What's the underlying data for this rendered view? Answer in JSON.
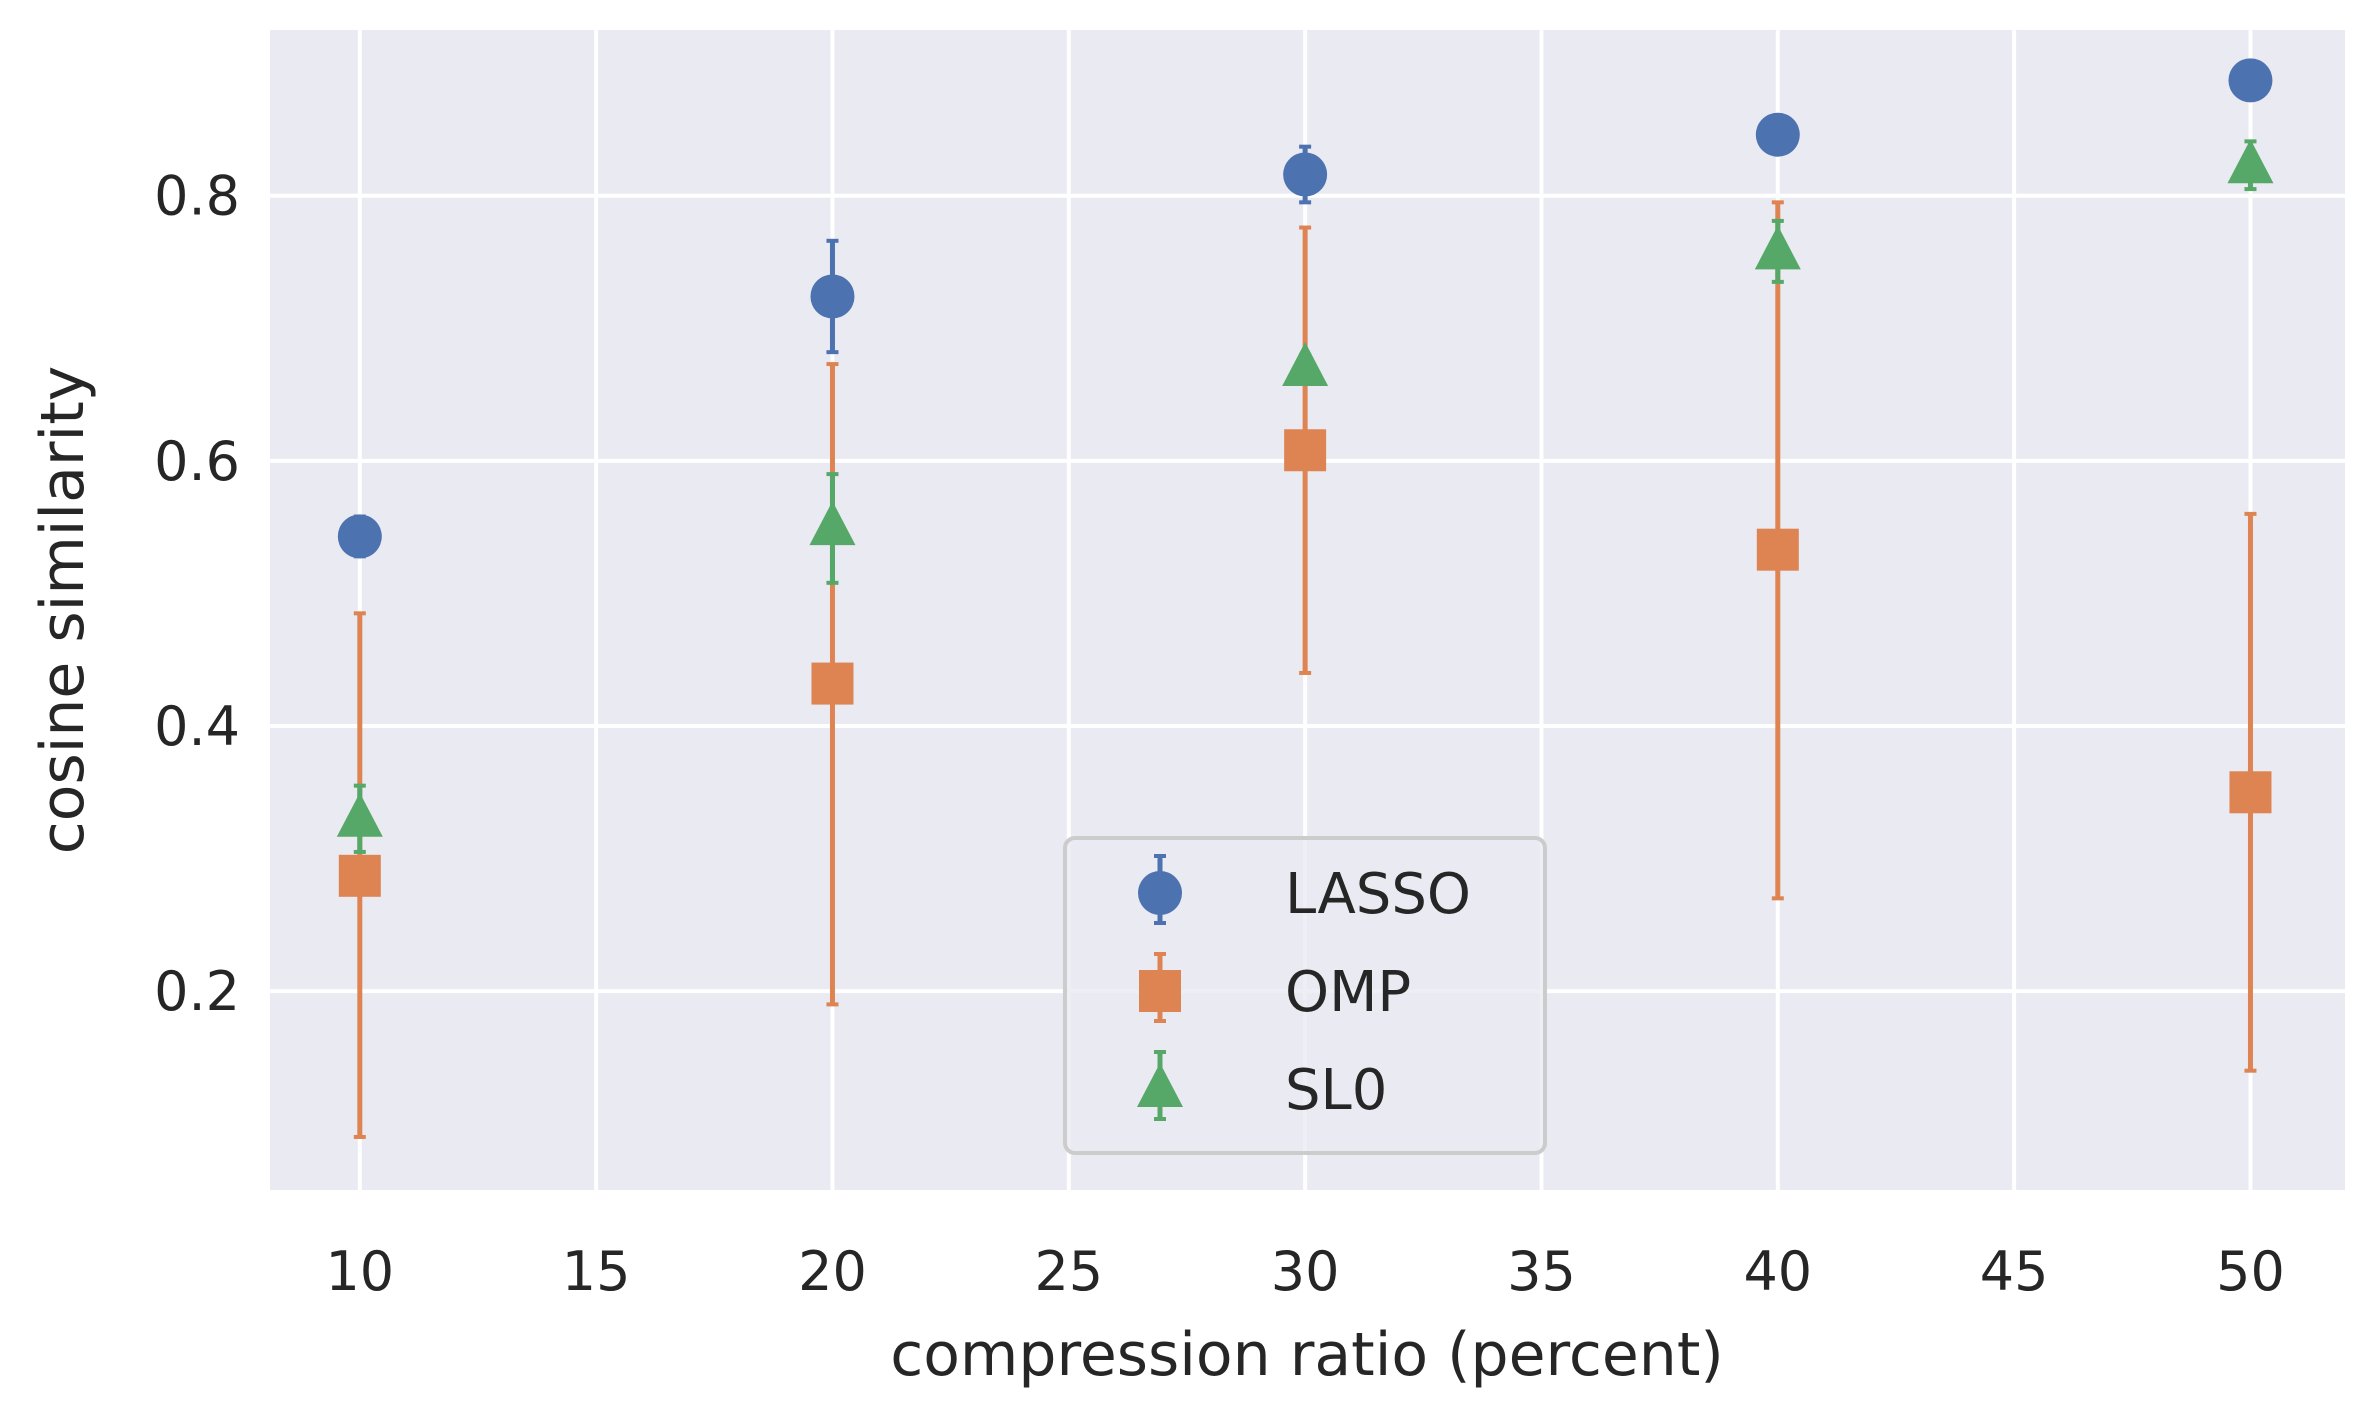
{
  "chart_data": {
    "type": "scatter",
    "title": "",
    "xlabel": "compression ratio (percent)",
    "ylabel": "cosine similarity",
    "xlim": [
      8.1,
      52.0
    ],
    "ylim": [
      0.05,
      0.925
    ],
    "xticks": [
      10,
      15,
      20,
      25,
      30,
      35,
      40,
      45,
      50
    ],
    "yticks": [
      0.2,
      0.4,
      0.6,
      0.8
    ],
    "xtick_labels": [
      "10",
      "15",
      "20",
      "25",
      "30",
      "35",
      "40",
      "45",
      "50"
    ],
    "ytick_labels": [
      "0.2",
      "0.4",
      "0.6",
      "0.8"
    ],
    "grid": true,
    "legend_position": "lower-center",
    "x": [
      10,
      20,
      30,
      40,
      50
    ],
    "series": [
      {
        "name": "LASSO",
        "marker": "circle",
        "color": "#4c72b0",
        "y": [
          0.543,
          0.724,
          0.816,
          0.846,
          0.887
        ],
        "yerr_low": [
          0.528,
          0.682,
          0.795,
          0.846,
          0.887
        ],
        "yerr_high": [
          0.558,
          0.766,
          0.837,
          0.846,
          0.887
        ]
      },
      {
        "name": "OMP",
        "marker": "square",
        "color": "#dd8452",
        "y": [
          0.287,
          0.432,
          0.608,
          0.533,
          0.35
        ],
        "yerr_low": [
          0.09,
          0.19,
          0.44,
          0.27,
          0.14
        ],
        "yerr_high": [
          0.485,
          0.673,
          0.776,
          0.795,
          0.56
        ]
      },
      {
        "name": "SL0",
        "marker": "triangle",
        "color": "#55a868",
        "y": [
          0.33,
          0.55,
          0.67,
          0.758,
          0.823
        ],
        "yerr_low": [
          0.305,
          0.508,
          0.66,
          0.735,
          0.805
        ],
        "yerr_high": [
          0.355,
          0.59,
          0.68,
          0.781,
          0.841
        ]
      }
    ]
  },
  "colors": {
    "plot_background": "#eaeaf2",
    "grid": "#ffffff",
    "text": "#262626"
  }
}
